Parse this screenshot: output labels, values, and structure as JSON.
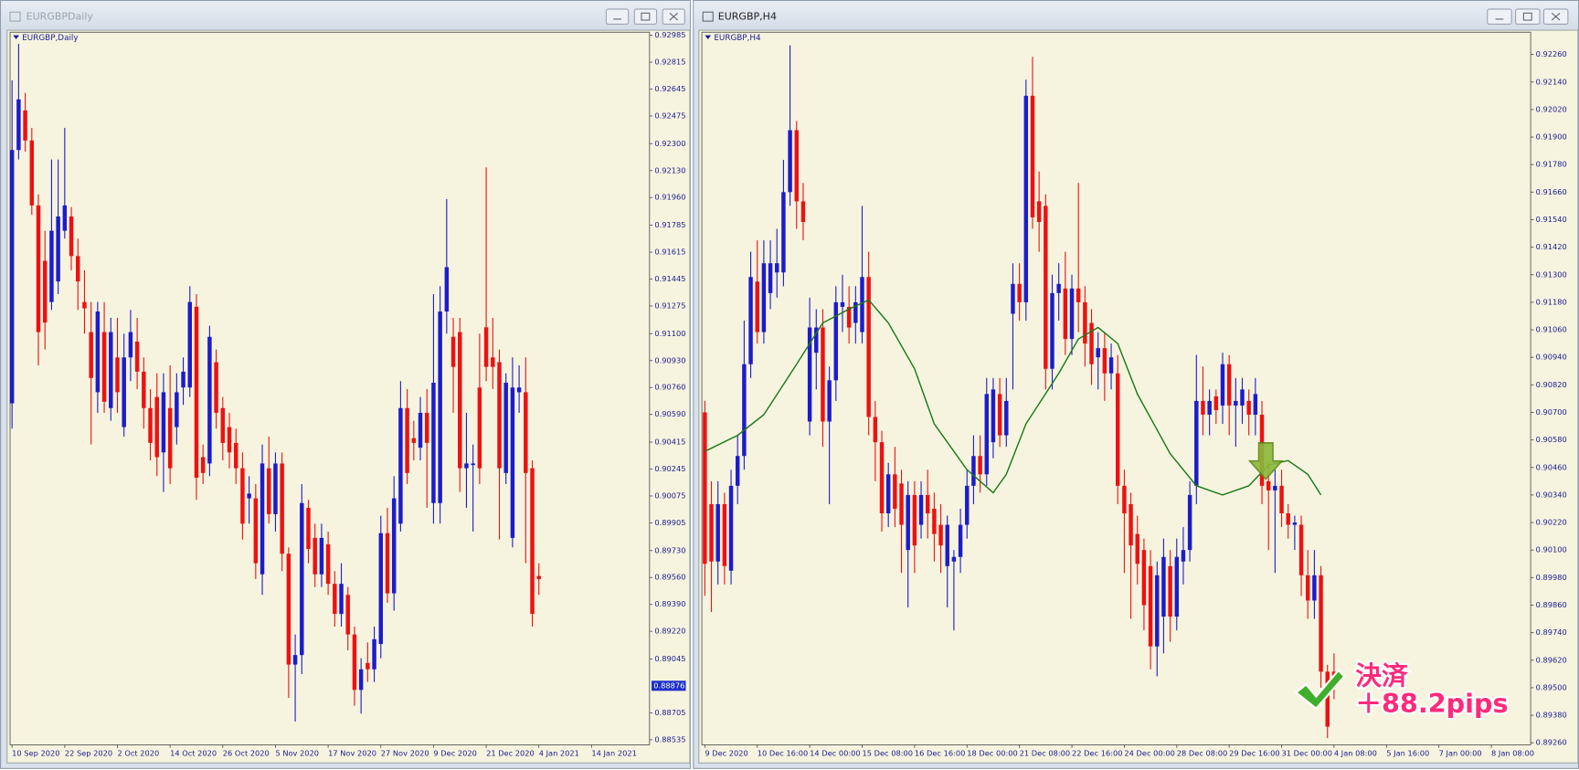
{
  "chart_data": [
    {
      "type": "candlestick",
      "window_title": "EURGBPDaily",
      "title": "EURGBP,Daily",
      "up_color": "#1c1ccc",
      "down_color": "#ee1111",
      "background": "#f6f4df",
      "open": [
        0.9066,
        0.9226,
        0.9251,
        0.9232,
        0.9191,
        0.9156,
        0.913,
        0.9143,
        0.9175,
        0.9184,
        0.9159,
        0.913,
        0.9111,
        0.9073,
        0.9111,
        0.9063,
        0.9095,
        0.9051,
        0.9095,
        0.9105,
        0.9086,
        0.9063,
        0.907,
        0.9035,
        0.9063,
        0.9051,
        0.9076,
        0.9076,
        0.9127,
        0.9032,
        0.9028,
        0.9092,
        0.9063,
        0.9051,
        0.9041,
        0.9025,
        0.9006,
        0.9006,
        0.8958,
        0.9025,
        0.8996,
        0.9028,
        0.8971,
        0.8901,
        0.8907,
        0.9,
        0.8981,
        0.8958,
        0.8977,
        0.8952,
        0.8933,
        0.8945,
        0.892,
        0.8885,
        0.8902,
        0.8898,
        0.8914,
        0.8984,
        0.8946,
        0.899,
        0.9063,
        0.9044,
        0.9038,
        0.906,
        0.9003,
        0.9003,
        0.9124,
        0.9108,
        0.9111,
        0.9025,
        0.9027,
        0.9076,
        0.9114,
        0.9095,
        0.9092,
        0.9022,
        0.8981,
        0.9073,
        0.9073,
        0.9025,
        0.8957
      ],
      "high": [
        0.927,
        0.9293,
        0.9262,
        0.924,
        0.9198,
        0.9175,
        0.922,
        0.922,
        0.924,
        0.919,
        0.917,
        0.915,
        0.913,
        0.913,
        0.913,
        0.912,
        0.912,
        0.911,
        0.9125,
        0.912,
        0.9095,
        0.9075,
        0.9085,
        0.9085,
        0.909,
        0.9085,
        0.9095,
        0.914,
        0.9135,
        0.904,
        0.9115,
        0.91,
        0.907,
        0.906,
        0.905,
        0.9035,
        0.902,
        0.9015,
        0.904,
        0.9045,
        0.9035,
        0.9035,
        0.8975,
        0.892,
        0.9015,
        0.9005,
        0.899,
        0.899,
        0.8985,
        0.896,
        0.8965,
        0.895,
        0.8925,
        0.8905,
        0.8915,
        0.8925,
        0.8995,
        0.9,
        0.902,
        0.908,
        0.9075,
        0.9055,
        0.907,
        0.9075,
        0.9135,
        0.914,
        0.9195,
        0.912,
        0.912,
        0.906,
        0.904,
        0.911,
        0.9215,
        0.912,
        0.91,
        0.9085,
        0.9095,
        0.909,
        0.9095,
        0.903,
        0.8965
      ],
      "low": [
        0.905,
        0.922,
        0.9225,
        0.9185,
        0.909,
        0.91,
        0.9125,
        0.9135,
        0.917,
        0.915,
        0.9125,
        0.911,
        0.904,
        0.906,
        0.906,
        0.9055,
        0.906,
        0.9045,
        0.908,
        0.9075,
        0.905,
        0.903,
        0.902,
        0.901,
        0.9015,
        0.904,
        0.9065,
        0.907,
        0.9005,
        0.9015,
        0.902,
        0.905,
        0.903,
        0.9025,
        0.9015,
        0.898,
        0.899,
        0.8955,
        0.8945,
        0.899,
        0.8985,
        0.896,
        0.888,
        0.8865,
        0.8895,
        0.8965,
        0.895,
        0.895,
        0.8945,
        0.8925,
        0.8925,
        0.891,
        0.8875,
        0.887,
        0.889,
        0.889,
        0.8905,
        0.894,
        0.8935,
        0.8985,
        0.9015,
        0.903,
        0.903,
        0.9,
        0.899,
        0.899,
        0.911,
        0.906,
        0.901,
        0.9,
        0.8985,
        0.9015,
        0.908,
        0.9075,
        0.898,
        0.9015,
        0.8975,
        0.906,
        0.8965,
        0.8925,
        0.8945
      ],
      "close": [
        0.9226,
        0.9258,
        0.9232,
        0.9191,
        0.9111,
        0.9117,
        0.9175,
        0.9184,
        0.9191,
        0.9159,
        0.9143,
        0.9126,
        0.9082,
        0.9124,
        0.9067,
        0.9111,
        0.9073,
        0.9095,
        0.9111,
        0.9086,
        0.9063,
        0.9041,
        0.9032,
        0.9073,
        0.9025,
        0.9073,
        0.9086,
        0.913,
        0.9019,
        0.9022,
        0.9108,
        0.906,
        0.9041,
        0.9035,
        0.9025,
        0.899,
        0.9009,
        0.8965,
        0.9028,
        0.8996,
        0.9028,
        0.8971,
        0.8901,
        0.8907,
        0.9003,
        0.8974,
        0.8958,
        0.8981,
        0.8952,
        0.8933,
        0.8952,
        0.892,
        0.8885,
        0.8898,
        0.8898,
        0.8917,
        0.8984,
        0.8946,
        0.9006,
        0.9063,
        0.9022,
        0.9041,
        0.906,
        0.9041,
        0.9079,
        0.9124,
        0.9152,
        0.9089,
        0.9025,
        0.9028,
        0.9028,
        0.9025,
        0.9089,
        0.9089,
        0.9025,
        0.9079,
        0.9076,
        0.9076,
        0.9022,
        0.8933,
        0.8955
      ],
      "ylim": [
        0.88503,
        0.93004
      ],
      "xlim": [
        -0.3,
        96.8
      ],
      "yticks": [
        0.92985,
        0.92815,
        0.92645,
        0.92475,
        {
          "value": 0.923,
          "label": "0.92300"
        },
        {
          "value": 0.9213,
          "label": "0.92130"
        },
        {
          "value": 0.9196,
          "label": "0.91960"
        },
        0.91785,
        0.91615,
        0.91445,
        0.91275,
        {
          "value": 0.911,
          "label": "0.91100"
        },
        {
          "value": 0.9093,
          "label": "0.90930"
        },
        {
          "value": 0.9076,
          "label": "0.90760"
        },
        {
          "value": 0.9059,
          "label": "0.90590"
        },
        0.90415,
        0.90245,
        0.90075,
        0.89905,
        {
          "value": 0.8973,
          "label": "0.89730"
        },
        {
          "value": 0.8956,
          "label": "0.89560"
        },
        {
          "value": 0.8939,
          "label": "0.89390"
        },
        {
          "value": 0.8922,
          "label": "0.89220"
        },
        0.89045,
        0.88705,
        0.88535
      ],
      "price_marker": 0.88876,
      "xticks": [
        {
          "value": 0,
          "label": "10 Sep 2020"
        },
        {
          "value": 8,
          "label": "22 Sep 2020"
        },
        {
          "value": 16,
          "label": "2 Oct 2020"
        },
        {
          "value": 24,
          "label": "14 Oct 2020"
        },
        {
          "value": 32,
          "label": "26 Oct 2020"
        },
        {
          "value": 40,
          "label": "5 Nov 2020"
        },
        {
          "value": 48,
          "label": "17 Nov 2020"
        },
        {
          "value": 56,
          "label": "27 Nov 2020"
        },
        {
          "value": 64,
          "label": "9 Dec 2020"
        },
        {
          "value": 72,
          "label": "21 Dec 2020"
        },
        {
          "value": 80,
          "label": "4 Jan 2021"
        },
        {
          "value": 88,
          "label": "14 Jan 2021"
        }
      ]
    },
    {
      "type": "candlestick",
      "window_title": "EURGBP,H4",
      "title": "EURGBP,H4",
      "up_color": "#1c1ccc",
      "down_color": "#ee1111",
      "background": "#f6f4df",
      "open": [
        0.907,
        0.903,
        0.9005,
        0.903,
        0.9001,
        0.9038,
        0.9051,
        0.9091,
        0.9127,
        0.9105,
        0.9122,
        0.9131,
        0.9131,
        0.9166,
        0.9193,
        0.9162,
        0.9066,
        0.9096,
        0.9107,
        0.9066,
        0.9084,
        0.9116,
        0.9116,
        0.9109,
        0.9105,
        0.9129,
        0.9068,
        0.9057,
        0.9026,
        0.9043,
        0.9039,
        0.901,
        0.9034,
        0.9021,
        0.9034,
        0.9028,
        0.9021,
        0.9003,
        0.9005,
        0.9007,
        0.9021,
        0.9038,
        0.9051,
        0.9043,
        0.9057,
        0.9078,
        0.906,
        0.9113,
        0.9126,
        0.9118,
        0.9208,
        0.9162,
        0.916,
        0.9089,
        0.9122,
        0.9124,
        0.9102,
        0.9124,
        0.9118,
        0.9109,
        0.9094,
        0.9098,
        0.9087,
        0.9087,
        0.9038,
        0.903,
        0.9017,
        0.901,
        0.9003,
        0.8968,
        0.8981,
        0.9003,
        0.8981,
        0.9005,
        0.901,
        0.9038,
        0.9075,
        0.9069,
        0.9077,
        0.9073,
        0.9091,
        0.9073,
        0.9073,
        0.9075,
        0.9069,
        0.9069,
        0.904,
        0.9036,
        0.9038,
        0.9026,
        0.9021,
        0.9021,
        0.8999,
        0.8988,
        0.8999,
        0.8957,
        0.8957
      ],
      "high": [
        0.9075,
        0.904,
        0.904,
        0.9035,
        0.9045,
        0.906,
        0.911,
        0.914,
        0.9145,
        0.9145,
        0.9145,
        0.915,
        0.918,
        0.923,
        0.9197,
        0.917,
        0.912,
        0.9115,
        0.9115,
        0.909,
        0.9125,
        0.913,
        0.9125,
        0.9125,
        0.916,
        0.914,
        0.9075,
        0.9062,
        0.9048,
        0.9055,
        0.9045,
        0.904,
        0.904,
        0.904,
        0.9045,
        0.9035,
        0.903,
        0.9025,
        0.901,
        0.9028,
        0.9045,
        0.906,
        0.906,
        0.9085,
        0.9085,
        0.9085,
        0.9085,
        0.9135,
        0.9135,
        0.9215,
        0.9225,
        0.9175,
        0.9165,
        0.913,
        0.9135,
        0.914,
        0.913,
        0.917,
        0.9125,
        0.9115,
        0.9105,
        0.9105,
        0.91,
        0.9095,
        0.9045,
        0.9035,
        0.9025,
        0.9015,
        0.901,
        0.9005,
        0.9015,
        0.901,
        0.9015,
        0.902,
        0.904,
        0.9095,
        0.909,
        0.908,
        0.908,
        0.9096,
        0.9095,
        0.9085,
        0.9085,
        0.908,
        0.9085,
        0.9075,
        0.9048,
        0.9045,
        0.9045,
        0.903,
        0.9025,
        0.9025,
        0.901,
        0.901,
        0.9003,
        0.896,
        0.8965
      ],
      "low": [
        0.899,
        0.8983,
        0.8995,
        0.8995,
        0.8995,
        0.903,
        0.9045,
        0.9085,
        0.91,
        0.91,
        0.9115,
        0.912,
        0.9125,
        0.916,
        0.915,
        0.9145,
        0.906,
        0.908,
        0.9055,
        0.903,
        0.9075,
        0.9105,
        0.91,
        0.91,
        0.91,
        0.906,
        0.904,
        0.9018,
        0.902,
        0.902,
        0.9,
        0.8985,
        0.9,
        0.9015,
        0.9015,
        0.9005,
        0.9,
        0.8985,
        0.8975,
        0.9,
        0.9015,
        0.903,
        0.9035,
        0.9038,
        0.905,
        0.9055,
        0.9055,
        0.908,
        0.911,
        0.911,
        0.915,
        0.914,
        0.908,
        0.908,
        0.911,
        0.9095,
        0.9095,
        0.9105,
        0.909,
        0.9082,
        0.908,
        0.9075,
        0.908,
        0.903,
        0.9,
        0.898,
        0.8995,
        0.8975,
        0.8958,
        0.8955,
        0.8965,
        0.897,
        0.8975,
        0.8995,
        0.9005,
        0.903,
        0.906,
        0.906,
        0.9065,
        0.9065,
        0.906,
        0.9055,
        0.9065,
        0.906,
        0.906,
        0.903,
        0.901,
        0.9,
        0.902,
        0.9015,
        0.901,
        0.899,
        0.898,
        0.898,
        0.895,
        0.8928,
        0.8945
      ],
      "close": [
        0.9004,
        0.9005,
        0.903,
        0.9003,
        0.9038,
        0.9051,
        0.9091,
        0.9129,
        0.9105,
        0.9135,
        0.9135,
        0.9135,
        0.9166,
        0.9193,
        0.9162,
        0.9153,
        0.9107,
        0.9107,
        0.9066,
        0.9084,
        0.9118,
        0.9118,
        0.9107,
        0.9118,
        0.9129,
        0.9068,
        0.9057,
        0.9026,
        0.9043,
        0.9028,
        0.9021,
        0.9034,
        0.9012,
        0.9034,
        0.9026,
        0.9017,
        0.9012,
        0.9021,
        0.9007,
        0.9021,
        0.9038,
        0.9051,
        0.9043,
        0.9078,
        0.908,
        0.906,
        0.9075,
        0.9126,
        0.9118,
        0.9208,
        0.9155,
        0.9153,
        0.9089,
        0.9122,
        0.9126,
        0.9102,
        0.9124,
        0.9118,
        0.91,
        0.9091,
        0.9098,
        0.9087,
        0.9094,
        0.9038,
        0.9026,
        0.9012,
        0.9004,
        0.8986,
        0.8968,
        0.8999,
        0.9007,
        0.8981,
        0.9007,
        0.901,
        0.9034,
        0.9075,
        0.9069,
        0.9075,
        0.9071,
        0.9091,
        0.9073,
        0.9075,
        0.908,
        0.9069,
        0.9078,
        0.9038,
        0.9036,
        0.9038,
        0.9026,
        0.9021,
        0.9022,
        0.8999,
        0.8988,
        0.8999,
        0.8957,
        0.8933,
        0.8955
      ],
      "line": {
        "color": "#1a7a1a",
        "x": [
          0,
          5,
          9,
          14,
          18,
          22,
          25,
          28,
          32,
          35,
          40,
          44,
          46,
          49,
          54,
          57,
          60,
          63,
          66,
          71,
          75,
          79,
          83,
          86,
          89,
          92,
          94
        ],
        "values": [
          0.9053,
          0.906,
          0.9069,
          0.9091,
          0.9109,
          0.9115,
          0.9119,
          0.9109,
          0.9089,
          0.9065,
          0.9045,
          0.9035,
          0.9043,
          0.9065,
          0.9087,
          0.9102,
          0.9107,
          0.91,
          0.9078,
          0.9052,
          0.9038,
          0.9034,
          0.9038,
          0.9047,
          0.9049,
          0.9043,
          0.9034
        ]
      },
      "ylim": [
        0.89251,
        0.92357
      ],
      "xlim": [
        -0.45,
        126
      ],
      "yticks": [
        {
          "value": 0.9226,
          "label": "0.92260"
        },
        {
          "value": 0.9214,
          "label": "0.92140"
        },
        {
          "value": 0.9202,
          "label": "0.92020"
        },
        {
          "value": 0.919,
          "label": "0.91900"
        },
        {
          "value": 0.9178,
          "label": "0.91780"
        },
        {
          "value": 0.9166,
          "label": "0.91660"
        },
        {
          "value": 0.9154,
          "label": "0.91540"
        },
        {
          "value": 0.9142,
          "label": "0.91420"
        },
        {
          "value": 0.913,
          "label": "0.91300"
        },
        {
          "value": 0.9118,
          "label": "0.91180"
        },
        {
          "value": 0.9106,
          "label": "0.91060"
        },
        {
          "value": 0.9094,
          "label": "0.90940"
        },
        {
          "value": 0.9082,
          "label": "0.90820"
        },
        {
          "value": 0.907,
          "label": "0.90700"
        },
        {
          "value": 0.9058,
          "label": "0.90580"
        },
        {
          "value": 0.9046,
          "label": "0.90460"
        },
        {
          "value": 0.9034,
          "label": "0.90340"
        },
        {
          "value": 0.9022,
          "label": "0.90220"
        },
        {
          "value": 0.901,
          "label": "0.90100"
        },
        {
          "value": 0.8998,
          "label": "0.89980"
        },
        {
          "value": 0.8986,
          "label": "0.89860"
        },
        {
          "value": 0.8974,
          "label": "0.89740"
        },
        {
          "value": 0.8962,
          "label": "0.89620"
        },
        {
          "value": 0.895,
          "label": "0.89500"
        },
        {
          "value": 0.8938,
          "label": "0.89380"
        },
        {
          "value": 0.8926,
          "label": "0.89260"
        }
      ],
      "xticks": [
        {
          "value": 0,
          "label": "9 Dec 2020"
        },
        {
          "value": 8,
          "label": "10 Dec 16:00"
        },
        {
          "value": 16,
          "label": "14 Dec 00:00"
        },
        {
          "value": 24,
          "label": "15 Dec 08:00"
        },
        {
          "value": 32,
          "label": "16 Dec 16:00"
        },
        {
          "value": 40,
          "label": "18 Dec 00:00"
        },
        {
          "value": 48,
          "label": "21 Dec 08:00"
        },
        {
          "value": 56,
          "label": "22 Dec 16:00"
        },
        {
          "value": 64,
          "label": "24 Dec 00:00"
        },
        {
          "value": 72,
          "label": "28 Dec 08:00"
        },
        {
          "value": 80,
          "label": "29 Dec 16:00"
        },
        {
          "value": 88,
          "label": "31 Dec 00:00"
        },
        {
          "value": 96,
          "label": "4 Jan 08:00"
        },
        {
          "value": 104,
          "label": "5 Jan 16:00"
        },
        {
          "value": 112,
          "label": "7 Jan 00:00"
        },
        {
          "value": 120,
          "label": "8 Jan 08:00"
        }
      ],
      "annotations": [
        "決済",
        "＋88.2pips"
      ]
    }
  ]
}
